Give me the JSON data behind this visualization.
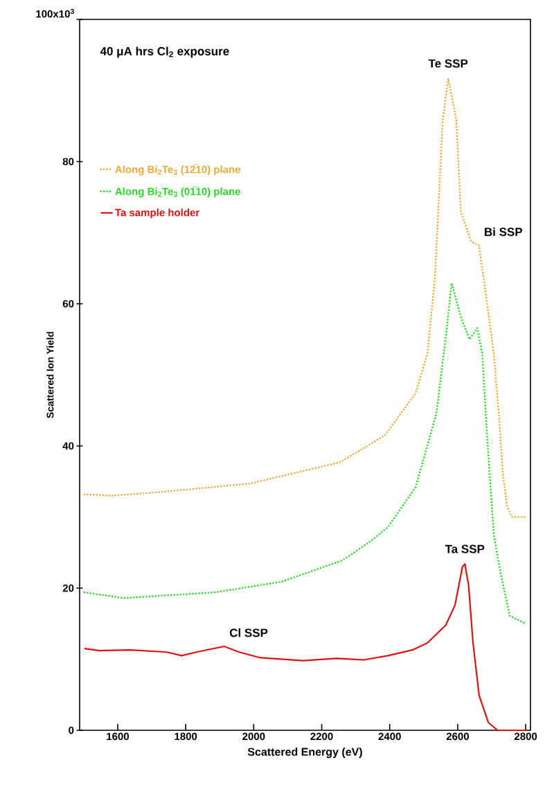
{
  "chart_data": {
    "type": "line",
    "xlabel": "Scattered Energy (eV)",
    "ylabel": "Scattered Ion Yield",
    "xlim": [
      1488,
      2814
    ],
    "ylim": [
      0,
      100
    ],
    "xticks": [
      1600,
      1800,
      2000,
      2200,
      2400,
      2600,
      2800
    ],
    "yticks": [
      0,
      20,
      40,
      60,
      80,
      {
        "value": 100,
        "label": null
      }
    ],
    "grid": false,
    "legend": "top left",
    "annotations": [
      "100x10$^{3}$",
      "40 μA hrs Cl$_{2}$ exposure",
      {
        "text": "Te SSP",
        "x": 2572,
        "y": 91.7
      },
      {
        "text": "Bi SSP",
        "x": 2662,
        "y": 68.2
      },
      {
        "text": "Ta SSP",
        "x": 2621,
        "y": 23.4
      },
      {
        "text": "Cl SSP",
        "x": 1913,
        "y": 11.8
      }
    ],
    "series": [
      {
        "name": "Along Bi$_{2}$Te$_{3}$ (12̅10) plane",
        "color": "#f0a830",
        "line_style": "dotted",
        "x": [
          1502,
          1582,
          1722,
          1989,
          2254,
          2386,
          2476,
          2511,
          2533,
          2556,
          2572,
          2596,
          2609,
          2639,
          2662,
          2676,
          2706,
          2720,
          2733,
          2745,
          2760,
          2800
        ],
        "values": [
          33.2,
          33.0,
          33.5,
          34.7,
          37.7,
          41.5,
          47.4,
          53,
          63.7,
          85.8,
          91.7,
          85.8,
          73,
          68.8,
          68.2,
          63.7,
          53,
          45,
          36,
          31.5,
          30,
          30
        ]
      },
      {
        "name": "Along Bi$_{2}$Te$_{3}$ (01̅10) plane",
        "color": "#22dd22",
        "line_style": "dotted",
        "x": [
          1502,
          1618,
          1886,
          2082,
          2261,
          2344,
          2395,
          2476,
          2537,
          2564,
          2582,
          2610,
          2635,
          2657,
          2672,
          2688,
          2706,
          2726,
          2753,
          2800
        ],
        "values": [
          19.4,
          18.6,
          19.4,
          20.9,
          23.9,
          26.6,
          28.6,
          34.2,
          44.5,
          55,
          62.9,
          58,
          55,
          56.6,
          53,
          40.2,
          27.5,
          22.1,
          16.1,
          15
        ]
      },
      {
        "name": "Ta sample holder",
        "color": "#e01010",
        "line_style": "solid",
        "x": [
          1502,
          1546,
          1636,
          1743,
          1788,
          1832,
          1913,
          1957,
          2020,
          2145,
          2243,
          2324,
          2395,
          2467,
          2511,
          2565,
          2592,
          2614,
          2621,
          2632,
          2645,
          2663,
          2690,
          2717,
          2800
        ],
        "values": [
          11.5,
          11.2,
          11.3,
          11.0,
          10.5,
          11.0,
          11.8,
          11.0,
          10.2,
          9.8,
          10.1,
          9.9,
          10.5,
          11.3,
          12.3,
          14.8,
          17.6,
          23.0,
          23.4,
          20.4,
          12.3,
          4.9,
          1.1,
          0,
          0
        ]
      }
    ]
  }
}
